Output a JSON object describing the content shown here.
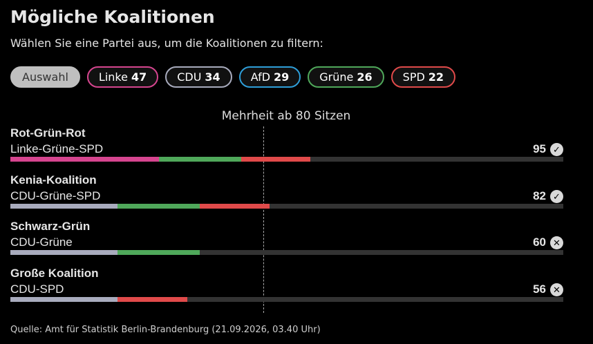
{
  "title": "Mögliche Koalitionen",
  "subtitle": "Wählen Sie eine Partei aus, um die Koalitionen zu filtern:",
  "filters": [
    {
      "label": "Auswahl",
      "seats": null,
      "active": true,
      "color": "#bfbfbf"
    },
    {
      "label": "Linke",
      "seats": "47",
      "active": false,
      "color": "#d6458f"
    },
    {
      "label": "CDU",
      "seats": "34",
      "active": false,
      "color": "#a8abbd"
    },
    {
      "label": "AfD",
      "seats": "29",
      "active": false,
      "color": "#2e9ed8"
    },
    {
      "label": "Grüne",
      "seats": "26",
      "active": false,
      "color": "#4fa85a"
    },
    {
      "label": "SPD",
      "seats": "22",
      "active": false,
      "color": "#e04a4a"
    }
  ],
  "majority_label": "Mehrheit ab 80 Sitzen",
  "source": "Quelle: Amt für Statistik Berlin-Brandenburg (21.09.2026, 03.40 Uhr)",
  "chart_data": {
    "type": "bar",
    "stacked": true,
    "orientation": "horizontal",
    "max_seats": 175,
    "majority": 80,
    "party_colors": {
      "Linke": "#d6458f",
      "CDU": "#a8abbd",
      "Grüne": "#4fa85a",
      "SPD": "#e04a4a",
      "track": "#333333"
    },
    "coalitions": [
      {
        "name": "Rot-Grün-Rot",
        "parties_label": "Linke-Grüne-SPD",
        "total": "95",
        "majority_reached": true,
        "segments": [
          {
            "party": "Linke",
            "seats": 47
          },
          {
            "party": "Grüne",
            "seats": 26
          },
          {
            "party": "SPD",
            "seats": 22
          }
        ]
      },
      {
        "name": "Kenia-Koalition",
        "parties_label": "CDU-Grüne-SPD",
        "total": "82",
        "majority_reached": true,
        "segments": [
          {
            "party": "CDU",
            "seats": 34
          },
          {
            "party": "Grüne",
            "seats": 26
          },
          {
            "party": "SPD",
            "seats": 22
          }
        ]
      },
      {
        "name": "Schwarz-Grün",
        "parties_label": "CDU-Grüne",
        "total": "60",
        "majority_reached": false,
        "segments": [
          {
            "party": "CDU",
            "seats": 34
          },
          {
            "party": "Grüne",
            "seats": 26
          }
        ]
      },
      {
        "name": "Große Koalition",
        "parties_label": "CDU-SPD",
        "total": "56",
        "majority_reached": false,
        "segments": [
          {
            "party": "CDU",
            "seats": 34
          },
          {
            "party": "SPD",
            "seats": 22
          }
        ]
      }
    ]
  }
}
